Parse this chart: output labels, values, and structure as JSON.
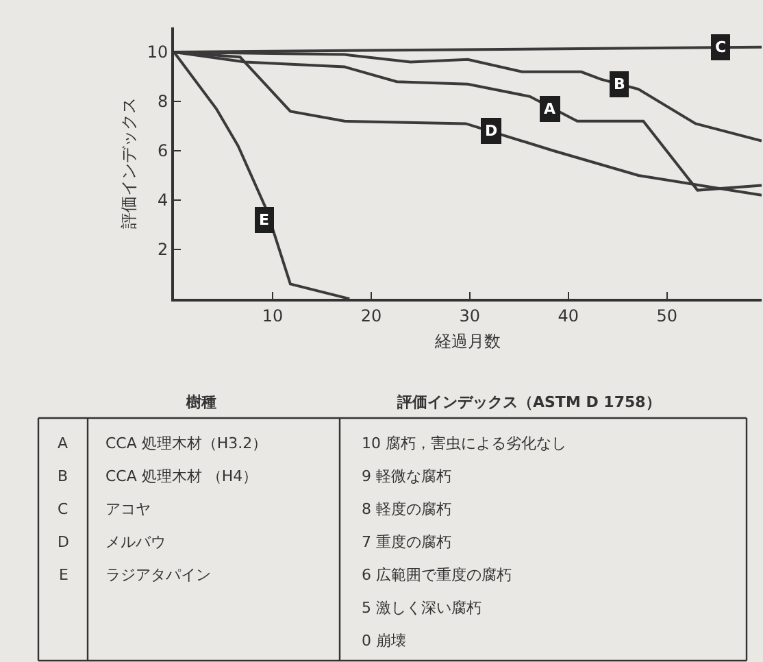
{
  "chart_data": {
    "type": "line",
    "xlabel": "経過月数",
    "ylabel": "評価インデックス",
    "xlim": [
      0,
      59.6
    ],
    "ylim": [
      0,
      11
    ],
    "xticks": [
      10,
      20,
      30,
      40,
      50
    ],
    "yticks": [
      2,
      4,
      6,
      8,
      10
    ],
    "grid": false,
    "marker": "none",
    "line_style": "solid",
    "series": [
      {
        "color": "#3a3a3a",
        "x": [
          0,
          7.2,
          17.3,
          22.6,
          29.8,
          36.1,
          40.9,
          47.6,
          53.1,
          59.6
        ],
        "values": [
          10,
          9.6,
          9.4,
          8.8,
          8.7,
          8.2,
          7.2,
          7.2,
          4.4,
          4.6
        ]
      },
      {
        "color": "#3a3a3a",
        "x": [
          0,
          17.3,
          24,
          29.8,
          35.3,
          41.3,
          43.3,
          47.1,
          52.9,
          59.6
        ],
        "values": [
          10,
          9.9,
          9.6,
          9.7,
          9.2,
          9.2,
          8.9,
          8.5,
          7.1,
          6.4
        ]
      },
      {
        "color": "#3a3a3a",
        "x": [
          0,
          59.6
        ],
        "values": [
          10,
          10.2
        ]
      },
      {
        "color": "#3a3a3a",
        "x": [
          0,
          6.7,
          11.8,
          17.3,
          29.6,
          38.5,
          47.1,
          59.6
        ],
        "values": [
          10,
          9.8,
          7.6,
          7.2,
          7.1,
          6,
          5,
          4.2
        ]
      },
      {
        "color": "#3a3a3a",
        "x": [
          0,
          4.3,
          6.5,
          9.4,
          11.8,
          17.8
        ],
        "values": [
          10,
          7.7,
          6.2,
          3.6,
          0.6,
          0
        ]
      }
    ],
    "annotations": [
      {
        "text": "A",
        "x": 38.2,
        "y": 7.7
      },
      {
        "text": "B",
        "x": 45.2,
        "y": 8.7
      },
      {
        "text": "C",
        "x": 55.5,
        "y": 10.2
      },
      {
        "text": "D",
        "x": 32.2,
        "y": 6.8
      },
      {
        "text": "E",
        "x": 9.1,
        "y": 3.2
      },
      "樹種",
      "評価インデックス（ASTM D 1758）",
      "A",
      "B",
      "C",
      "D",
      "E",
      "CCA 処理木材（H3.2）",
      "CCA 処理木材 （H4）",
      "アコヤ",
      "メルバウ",
      "ラジアタパイン",
      "10 腐朽，害虫による劣化なし",
      "9 軽微な腐朽",
      "8 軽度の腐朽",
      "7 重度の腐朽",
      "6 広範囲で重度の腐朽",
      "5 激しく深い腐朽",
      "0 崩壊"
    ]
  }
}
